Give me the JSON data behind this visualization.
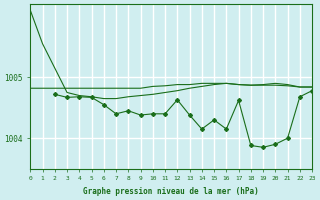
{
  "bg_color": "#d0eef0",
  "grid_color": "#ffffff",
  "line_color": "#1a6e1a",
  "title": "Graphe pression niveau de la mer (hPa)",
  "xlim": [
    0,
    23
  ],
  "ylim": [
    1003.5,
    1006.2
  ],
  "yticks": [
    1004,
    1005
  ],
  "xticks": [
    0,
    1,
    2,
    3,
    4,
    5,
    6,
    7,
    8,
    9,
    10,
    11,
    12,
    13,
    14,
    15,
    16,
    17,
    18,
    19,
    20,
    21,
    22,
    23
  ],
  "series1_x": [
    0,
    1,
    2,
    3,
    4,
    5,
    6,
    7,
    8,
    9,
    10,
    11,
    12,
    13,
    14,
    15,
    16,
    17,
    18,
    19,
    20,
    21,
    22,
    23
  ],
  "series1_y": [
    1006.1,
    1005.55,
    1005.15,
    1004.75,
    1004.7,
    1004.68,
    1004.65,
    1004.65,
    1004.68,
    1004.7,
    1004.72,
    1004.75,
    1004.78,
    1004.82,
    1004.85,
    1004.88,
    1004.9,
    1004.88,
    1004.87,
    1004.88,
    1004.9,
    1004.88,
    1004.84,
    1004.84
  ],
  "series2_x": [
    0,
    1,
    2,
    3,
    4,
    5,
    6,
    7,
    8,
    9,
    10,
    11,
    12,
    13,
    14,
    15,
    16,
    17,
    18,
    19,
    20,
    21,
    22,
    23
  ],
  "series2_y": [
    1004.82,
    1004.82,
    1004.82,
    1004.82,
    1004.82,
    1004.82,
    1004.82,
    1004.82,
    1004.82,
    1004.82,
    1004.85,
    1004.86,
    1004.88,
    1004.88,
    1004.9,
    1004.9,
    1004.9,
    1004.88,
    1004.87,
    1004.87,
    1004.87,
    1004.86,
    1004.84,
    1004.84
  ],
  "series3_x": [
    2,
    3,
    4,
    5,
    6,
    7,
    8,
    9,
    10,
    11,
    12,
    13,
    14,
    15,
    16,
    17,
    18,
    19,
    20,
    21,
    22,
    23
  ],
  "series3_y": [
    1004.72,
    1004.67,
    1004.68,
    1004.67,
    1004.55,
    1004.4,
    1004.45,
    1004.38,
    1004.4,
    1004.4,
    1004.63,
    1004.38,
    1004.15,
    1004.3,
    1004.15,
    1004.62,
    1003.88,
    1003.85,
    1003.9,
    1004.0,
    1004.68,
    1004.78
  ]
}
